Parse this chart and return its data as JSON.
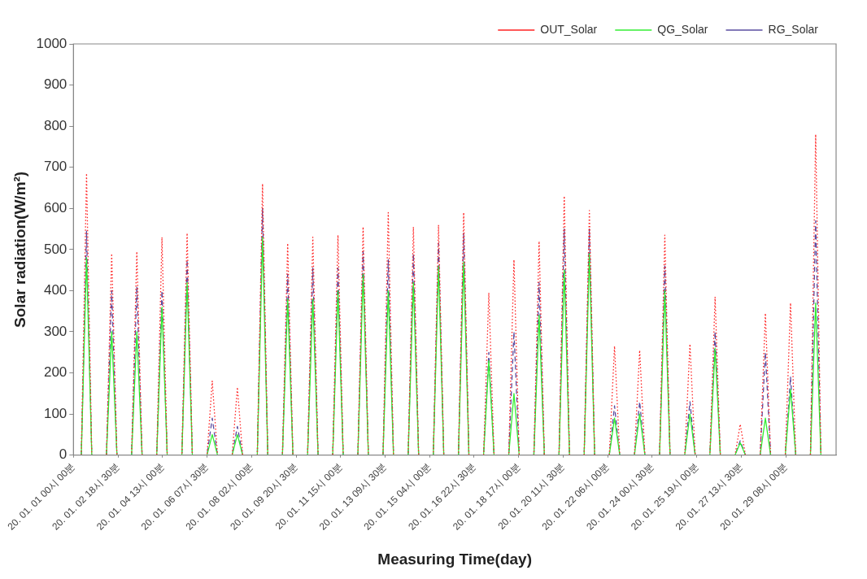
{
  "chart_data": {
    "type": "line",
    "xlabel": "Measuring Time(day)",
    "ylabel": "Solar radiation(W/m²)",
    "xlim": [
      "--01-01T00:00",
      "--01-31T08:00"
    ],
    "ylim": [
      0,
      1000
    ],
    "yticks": [
      0,
      100,
      200,
      300,
      400,
      500,
      600,
      700,
      800,
      900,
      1000
    ],
    "xticks": [
      {
        "value": "--01-01T00:00",
        "label": "20. 01. 01 00시 00분"
      },
      {
        "value": "--01-02T18:30",
        "label": "20. 01. 02 18시 30분"
      },
      {
        "value": "--01-04T13:00",
        "label": "20. 01. 04 13시 00분"
      },
      {
        "value": "--01-06T07:30",
        "label": "20. 01. 06 07시 30분"
      },
      {
        "value": "--01-08T02:00",
        "label": "20. 01. 08 02시 00분"
      },
      {
        "value": "--01-09T20:30",
        "label": "20. 01. 09 20시 30분"
      },
      {
        "value": "--01-11T15:00",
        "label": "20. 01. 11 15시 00분"
      },
      {
        "value": "--01-13T09:30",
        "label": "20. 01. 13 09시 30분"
      },
      {
        "value": "--01-15T04:00",
        "label": "20. 01. 15 04시 00분"
      },
      {
        "value": "--01-16T22:30",
        "label": "20. 01. 16 22시 30분"
      },
      {
        "value": "--01-18T17:00",
        "label": "20. 01. 18 17시 00분"
      },
      {
        "value": "--01-20T11:30",
        "label": "20. 01. 20 11시 30분"
      },
      {
        "value": "--01-22T06:00",
        "label": "20. 01. 22 06시 00분"
      },
      {
        "value": "--01-24T00:30",
        "label": "20. 01. 24 00시 30분"
      },
      {
        "value": "--01-25T19:00",
        "label": "20. 01. 25 19시 00분"
      },
      {
        "value": "--01-27T13:30",
        "label": "20. 01. 27 13시 30분"
      },
      {
        "value": "--01-29T08:00",
        "label": "20. 01. 29 08시 00분"
      }
    ],
    "x": [
      "--01-01T07:30",
      "--01-01T12:30",
      "--01-01T17:30",
      "--01-02T07:30",
      "--01-02T12:30",
      "--01-02T17:30",
      "--01-03T07:30",
      "--01-03T12:30",
      "--01-03T17:30",
      "--01-04T07:30",
      "--01-04T12:30",
      "--01-04T17:30",
      "--01-05T07:30",
      "--01-05T12:30",
      "--01-05T17:30",
      "--01-06T07:30",
      "--01-06T12:30",
      "--01-06T17:30",
      "--01-07T07:30",
      "--01-07T12:30",
      "--01-07T17:30",
      "--01-08T07:30",
      "--01-08T12:30",
      "--01-08T17:30",
      "--01-09T07:30",
      "--01-09T12:30",
      "--01-09T17:30",
      "--01-10T07:30",
      "--01-10T12:30",
      "--01-10T17:30",
      "--01-11T07:30",
      "--01-11T12:30",
      "--01-11T17:30",
      "--01-12T07:30",
      "--01-12T12:30",
      "--01-12T17:30",
      "--01-13T07:30",
      "--01-13T12:30",
      "--01-13T17:30",
      "--01-14T07:30",
      "--01-14T12:30",
      "--01-14T17:30",
      "--01-15T07:30",
      "--01-15T12:30",
      "--01-15T17:30",
      "--01-16T07:30",
      "--01-16T12:30",
      "--01-16T17:30",
      "--01-17T07:30",
      "--01-17T12:30",
      "--01-17T17:30",
      "--01-18T07:30",
      "--01-18T12:30",
      "--01-18T17:30",
      "--01-19T07:30",
      "--01-19T12:30",
      "--01-19T17:30",
      "--01-20T07:30",
      "--01-20T12:30",
      "--01-20T17:30",
      "--01-21T07:30",
      "--01-21T12:30",
      "--01-21T17:30",
      "--01-22T07:30",
      "--01-22T12:30",
      "--01-22T17:30",
      "--01-23T07:30",
      "--01-23T12:30",
      "--01-23T17:30",
      "--01-24T07:30",
      "--01-24T12:30",
      "--01-24T17:30",
      "--01-25T07:30",
      "--01-25T12:30",
      "--01-25T17:30",
      "--01-26T07:30",
      "--01-26T12:30",
      "--01-26T17:30",
      "--01-27T07:30",
      "--01-27T12:30",
      "--01-27T17:30",
      "--01-28T07:30",
      "--01-28T12:30",
      "--01-28T17:30",
      "--01-29T07:30",
      "--01-29T12:30",
      "--01-29T17:30",
      "--01-30T07:30",
      "--01-30T12:30",
      "--01-30T17:30"
    ],
    "series": [
      {
        "name": "OUT_Solar",
        "color": "#ff2020",
        "line_style": "dotted",
        "values": [
          0,
          685,
          0,
          0,
          490,
          0,
          0,
          495,
          0,
          0,
          530,
          0,
          0,
          540,
          0,
          0,
          180,
          0,
          0,
          165,
          0,
          0,
          660,
          0,
          0,
          515,
          0,
          0,
          530,
          0,
          0,
          535,
          0,
          0,
          555,
          0,
          0,
          590,
          0,
          0,
          555,
          0,
          0,
          560,
          0,
          0,
          590,
          0,
          0,
          395,
          0,
          0,
          475,
          0,
          0,
          520,
          0,
          0,
          630,
          0,
          0,
          595,
          0,
          0,
          265,
          0,
          0,
          255,
          0,
          0,
          535,
          0,
          0,
          270,
          0,
          0,
          385,
          0,
          0,
          75,
          0,
          0,
          345,
          0,
          0,
          370,
          0,
          0,
          780,
          0
        ]
      },
      {
        "name": "QG_Solar",
        "color": "#33ee33",
        "line_style": "solid",
        "values": [
          0,
          480,
          0,
          0,
          300,
          0,
          0,
          300,
          0,
          0,
          360,
          0,
          0,
          420,
          0,
          0,
          50,
          0,
          0,
          50,
          0,
          0,
          530,
          0,
          0,
          380,
          0,
          0,
          380,
          0,
          0,
          400,
          0,
          0,
          440,
          0,
          0,
          400,
          0,
          0,
          420,
          0,
          0,
          460,
          0,
          0,
          470,
          0,
          0,
          230,
          0,
          0,
          150,
          0,
          0,
          340,
          0,
          0,
          450,
          0,
          0,
          490,
          0,
          0,
          90,
          0,
          0,
          100,
          0,
          0,
          400,
          0,
          0,
          100,
          0,
          0,
          260,
          0,
          0,
          30,
          0,
          0,
          90,
          0,
          0,
          160,
          0,
          0,
          370,
          0
        ]
      },
      {
        "name": "RG_Solar",
        "color": "#5a4ca0",
        "line_style": "dashed",
        "values": [
          0,
          545,
          0,
          0,
          400,
          0,
          0,
          410,
          0,
          0,
          400,
          0,
          0,
          475,
          0,
          0,
          90,
          0,
          0,
          70,
          0,
          0,
          600,
          0,
          0,
          440,
          0,
          0,
          455,
          0,
          0,
          455,
          0,
          0,
          495,
          0,
          0,
          475,
          0,
          0,
          490,
          0,
          0,
          515,
          0,
          0,
          540,
          0,
          0,
          250,
          0,
          0,
          300,
          0,
          0,
          420,
          0,
          0,
          550,
          0,
          0,
          550,
          0,
          0,
          120,
          0,
          0,
          130,
          0,
          0,
          460,
          0,
          0,
          130,
          0,
          0,
          300,
          0,
          0,
          35,
          0,
          0,
          250,
          0,
          0,
          190,
          0,
          0,
          570,
          0
        ]
      }
    ],
    "legend": "top right",
    "grid": false,
    "marker": "none"
  }
}
